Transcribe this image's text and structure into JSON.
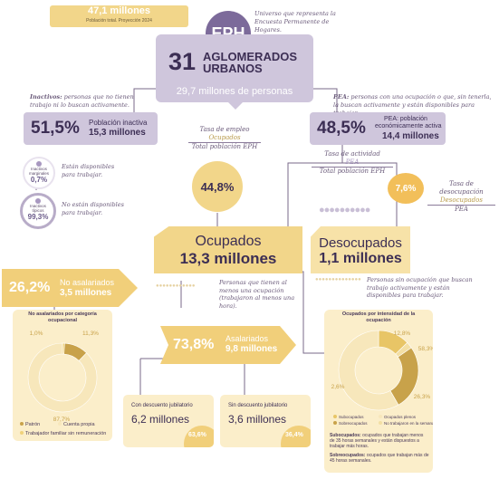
{
  "top_banner": {
    "title": "47,1 millones",
    "subtitle": "Población total. Proyección 2024"
  },
  "eph": {
    "badge": "EPH",
    "note": "Universo que representa la Encuesta Permanente de Hogares."
  },
  "aglomerados": {
    "number": "31",
    "label_line1": "AGLOMERADOS",
    "label_line2": "URBANOS",
    "persons": "29,7 millones de personas"
  },
  "inactivos": {
    "definition_term": "Inactivos:",
    "definition": " personas que no tienen trabajo ni lo buscan activamente.",
    "pct": "51,5%",
    "label": "Población inactiva",
    "value": "15,3 millones",
    "marginal": {
      "label_line1": "Inactivos",
      "label_line2": "marginales",
      "pct": "0,7%",
      "note": "Están disponibles para trabajar."
    },
    "tipicos": {
      "label_line1": "Inactivos",
      "label_line2": "típicos",
      "pct": "99,3%",
      "note": "No están disponibles para trabajar."
    }
  },
  "pea": {
    "definition_term": "PEA:",
    "definition": " personas con una ocupación o que, sin tenerla, la buscan activamente y están disponibles para trabajar.",
    "pct": "48,5%",
    "label_line1": "PEA: población",
    "label_line2": "económicamente activa",
    "value": "14,4 millones"
  },
  "tasa_empleo": {
    "label": "Tasa de empleo",
    "numerator": "Ocupados",
    "denominator": "Total población EPH",
    "value": "44,8%"
  },
  "tasa_actividad": {
    "label": "Tasa de actividad",
    "numerator": "PEA",
    "denominator": "Total población EPH"
  },
  "tasa_desocupacion": {
    "label": "Tasa de desocupación",
    "numerator": "Desocupados",
    "denominator": "PEA",
    "value": "7,6%"
  },
  "ocupados": {
    "label": "Ocupados",
    "value": "13,3 millones",
    "note": "Personas que tienen al menos una ocupación (trabajaron al menos una hora)."
  },
  "desocupados": {
    "label": "Desocupados",
    "value": "1,1 millones",
    "note": "Personas sin ocupación que buscan trabajo activamente y están disponibles para trabajar."
  },
  "no_asalariados": {
    "pct": "26,2%",
    "label": "No asalariados",
    "value": "3,5 millones"
  },
  "asalariados": {
    "pct": "73,8%",
    "label": "Asalariados",
    "value": "9,8 millones"
  },
  "con_descuento": {
    "label": "Con descuento jubilatorio",
    "value": "6,2 millones",
    "pct": "63,6%"
  },
  "sin_descuento": {
    "label": "Sin descuento jubilatorio",
    "value": "3,6 millones",
    "pct": "36,4%"
  },
  "footnotes": {
    "sub_term": "Subocupados:",
    "sub_text": " ocupados que trabajan menos de 35 horas semanales y están dispuestos a trabajar más horas.",
    "sobre_term": "Sobreocupados:",
    "sobre_text": " ocupados que trabajan más de 45 horas semanales."
  },
  "colors": {
    "purple": "#cfc6dc",
    "purple_dark": "#a898c0",
    "yellow": "#f2d68a",
    "gold": "#c8a24a",
    "cream": "#f7e7bb",
    "text": "#4a3a5a"
  },
  "chart_data": [
    {
      "type": "pie",
      "title": "No asalariados por categoría ocupacional",
      "categories": [
        "Patrón",
        "Cuenta propia",
        "Trabajador familiar sin remuneración"
      ],
      "values": [
        11.3,
        87.7,
        1.0
      ],
      "labels": [
        "11,3%",
        "87,7%",
        "1,0%"
      ],
      "colors": [
        "#c8a24a",
        "#f7e7bb",
        "#f0d27a"
      ],
      "legend": "bottom"
    },
    {
      "type": "pie",
      "title": "Ocupados por intensidad de la ocupación",
      "categories": [
        "Subocupados",
        "Ocupados plenos",
        "Sobreocupados",
        "No trabajaron en la semana"
      ],
      "values": [
        12.8,
        58.3,
        26.3,
        2.6
      ],
      "labels": [
        "12,8%",
        "58,3%",
        "26,3%",
        "2,6%"
      ],
      "colors": [
        "#e8c566",
        "#f7e7bb",
        "#c8a24a",
        "#f3dfa4"
      ],
      "legend": "bottom"
    }
  ]
}
